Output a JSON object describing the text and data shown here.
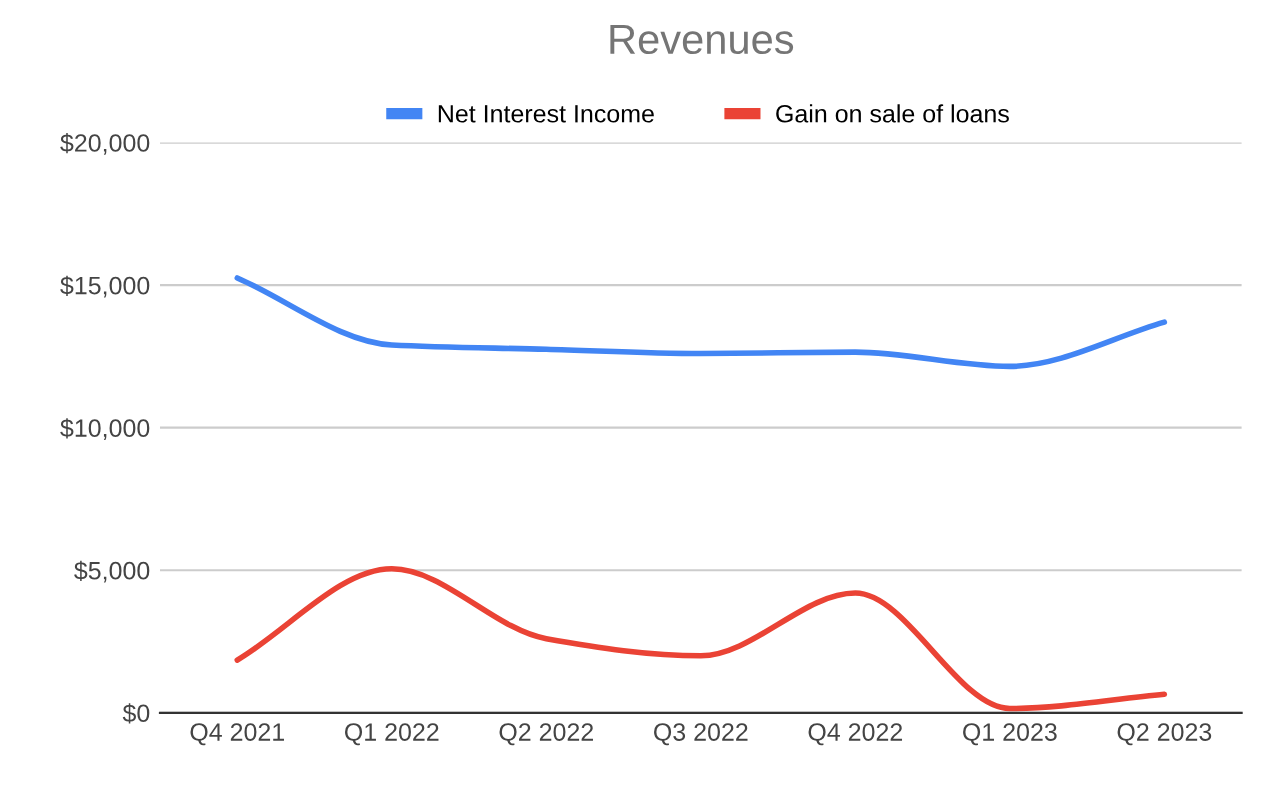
{
  "chart_data": {
    "type": "line",
    "title": "Revenues",
    "categories": [
      "Q4 2021",
      "Q1 2022",
      "Q2 2022",
      "Q3 2022",
      "Q4 2022",
      "Q1 2023",
      "Q2 2023"
    ],
    "series": [
      {
        "name": "Net Interest Income",
        "color": "#4285f4",
        "values": [
          15250,
          12900,
          12750,
          12600,
          12650,
          12150,
          13700
        ]
      },
      {
        "name": "Gain on sale of loans",
        "color": "#ea4335",
        "values": [
          1850,
          5050,
          2600,
          2000,
          4200,
          150,
          650
        ]
      }
    ],
    "ylim": [
      0,
      20000
    ],
    "yticks": [
      {
        "value": 0,
        "label": "$0"
      },
      {
        "value": 5000,
        "label": "$5,000"
      },
      {
        "value": 10000,
        "label": "$10,000"
      },
      {
        "value": 15000,
        "label": "$15,000"
      },
      {
        "value": 20000,
        "label": "$20,000"
      }
    ],
    "grid": "y",
    "legend": "top",
    "marker": "none",
    "line_style": "solid"
  }
}
